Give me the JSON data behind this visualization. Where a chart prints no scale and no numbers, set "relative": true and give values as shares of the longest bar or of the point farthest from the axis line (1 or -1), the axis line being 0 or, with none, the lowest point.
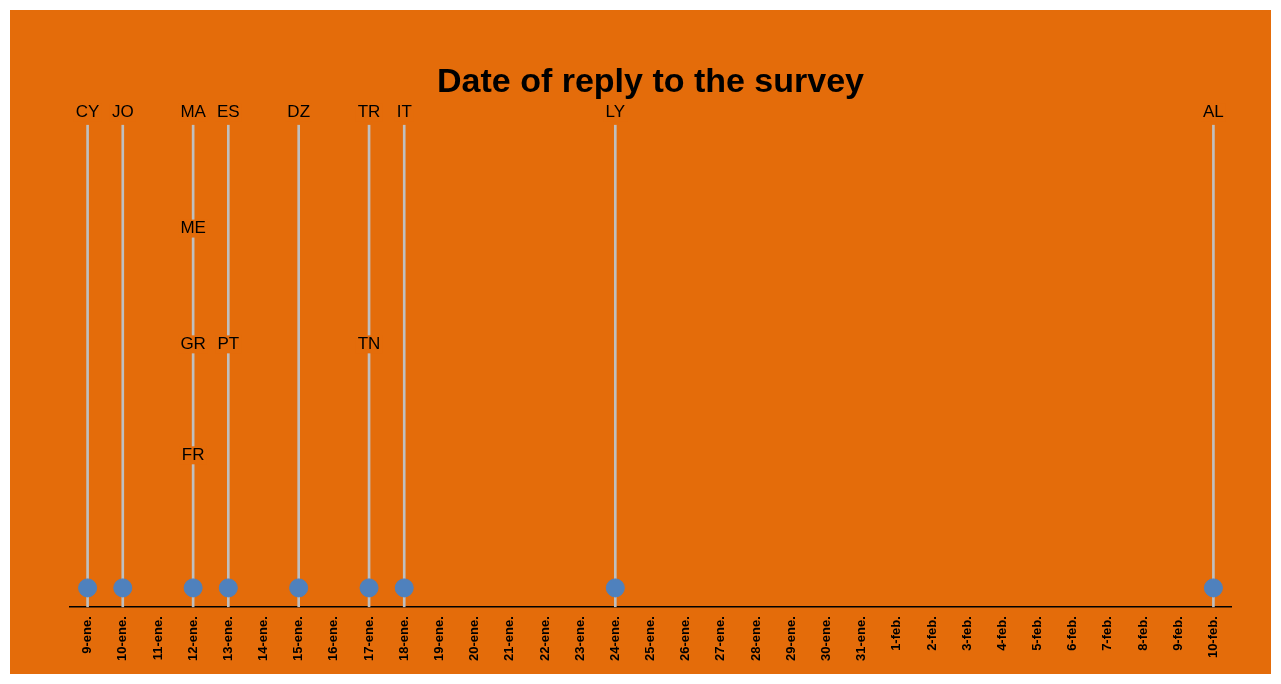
{
  "chart_data": {
    "type": "bar",
    "title": "Date of reply to the survey",
    "relative": true,
    "categories": [
      "9-ene.",
      "10-ene.",
      "11-ene.",
      "12-ene.",
      "13-ene.",
      "14-ene.",
      "15-ene.",
      "16-ene.",
      "17-ene.",
      "18-ene.",
      "19-ene.",
      "20-ene.",
      "21-ene.",
      "22-ene.",
      "23-ene.",
      "24-ene.",
      "25-ene.",
      "26-ene.",
      "27-ene.",
      "28-ene.",
      "29-ene.",
      "30-ene.",
      "31-ene.",
      "1-feb.",
      "2-feb.",
      "3-feb.",
      "4-feb.",
      "5-feb.",
      "6-feb.",
      "7-feb.",
      "8-feb.",
      "9-feb.",
      "10-feb."
    ],
    "series": [
      {
        "type": "bar",
        "color": "#bfbfbf",
        "values": [
          1,
          1,
          null,
          1,
          1,
          null,
          1,
          null,
          1,
          1,
          null,
          null,
          null,
          null,
          null,
          1,
          null,
          null,
          null,
          null,
          null,
          null,
          null,
          null,
          null,
          null,
          null,
          null,
          null,
          null,
          null,
          null,
          1
        ]
      },
      {
        "type": "scatter",
        "color": "#4f81bd",
        "marker": "circle",
        "values": [
          0.04,
          0.04,
          null,
          0.04,
          0.04,
          null,
          0.04,
          null,
          0.04,
          0.04,
          null,
          null,
          null,
          null,
          null,
          0.04,
          null,
          null,
          null,
          null,
          null,
          null,
          null,
          null,
          null,
          null,
          null,
          null,
          null,
          null,
          null,
          null,
          0.04
        ]
      }
    ],
    "annotations": [
      {
        "text": "CY",
        "x": "9-ene.",
        "y": 1
      },
      {
        "text": "JO",
        "x": "10-ene.",
        "y": 1
      },
      {
        "text": "MA",
        "x": "12-ene.",
        "y": 1
      },
      {
        "text": "ME",
        "x": "12-ene.",
        "y": 0.76
      },
      {
        "text": "GR",
        "x": "12-ene.",
        "y": 0.52
      },
      {
        "text": "FR",
        "x": "12-ene.",
        "y": 0.29
      },
      {
        "text": "ES",
        "x": "13-ene.",
        "y": 1
      },
      {
        "text": "PT",
        "x": "13-ene.",
        "y": 0.52
      },
      {
        "text": "DZ",
        "x": "15-ene.",
        "y": 1
      },
      {
        "text": "TR",
        "x": "17-ene.",
        "y": 1
      },
      {
        "text": "TN",
        "x": "17-ene.",
        "y": 0.52
      },
      {
        "text": "IT",
        "x": "18-ene.",
        "y": 1
      },
      {
        "text": "LY",
        "x": "24-ene.",
        "y": 1
      },
      {
        "text": "AL",
        "x": "10-feb.",
        "y": 1
      }
    ],
    "tick_labels": "x"
  }
}
